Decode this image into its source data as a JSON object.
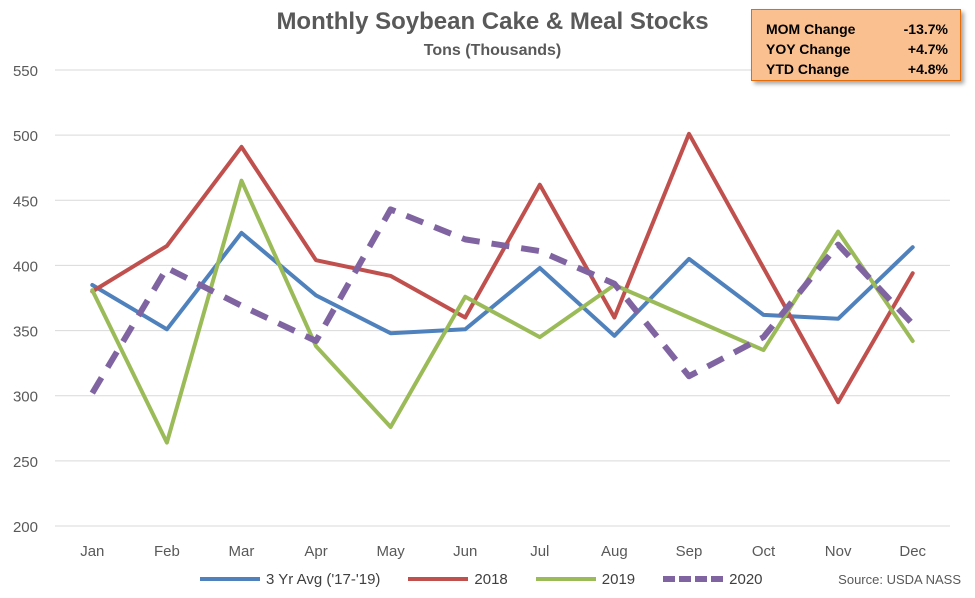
{
  "title": "Monthly Soybean Cake & Meal Stocks",
  "subtitle": "Tons (Thousands)",
  "stats": [
    {
      "label": "MOM Change",
      "value": "-13.7%"
    },
    {
      "label": "YOY Change",
      "value": "+4.7%"
    },
    {
      "label": "YTD Change",
      "value": "+4.8%"
    }
  ],
  "source": "Source: USDA NASS",
  "chart_data": {
    "type": "line",
    "title": "Monthly Soybean Cake & Meal Stocks",
    "subtitle": "Tons (Thousands)",
    "categories": [
      "Jan",
      "Feb",
      "Mar",
      "Apr",
      "May",
      "Jun",
      "Jul",
      "Aug",
      "Sep",
      "Oct",
      "Nov",
      "Dec"
    ],
    "ylim": [
      200,
      550
    ],
    "yticks": [
      200,
      250,
      300,
      350,
      400,
      450,
      500,
      550
    ],
    "grid": true,
    "legend_position": "bottom",
    "series": [
      {
        "name": "3 Yr Avg ('17-'19)",
        "color": "#4f81bd",
        "dashed": false,
        "values": [
          385,
          351,
          425,
          377,
          348,
          351,
          398,
          346,
          405,
          362,
          359,
          414
        ]
      },
      {
        "name": "2018",
        "color": "#c0504d",
        "dashed": false,
        "values": [
          380,
          415,
          491,
          404,
          392,
          360,
          462,
          360,
          501,
          398,
          295,
          394
        ]
      },
      {
        "name": "2019",
        "color": "#9bbb59",
        "dashed": false,
        "values": [
          381,
          264,
          465,
          338,
          276,
          376,
          345,
          385,
          360,
          335,
          426,
          342
        ]
      },
      {
        "name": "2020",
        "color": "#8064a2",
        "dashed": true,
        "values": [
          302,
          398,
          369,
          342,
          443,
          420,
          411,
          386,
          315,
          345,
          416,
          355
        ]
      }
    ]
  }
}
